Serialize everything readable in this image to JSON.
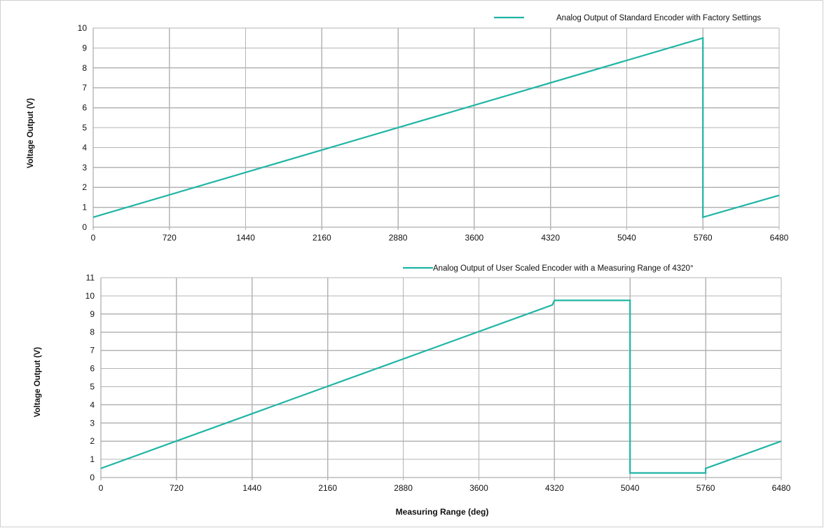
{
  "colors": {
    "series": "#1fb5a4",
    "grid": "#b4b4b4"
  },
  "chart_data": [
    {
      "type": "line",
      "title": "",
      "xlabel": "",
      "ylabel": "Voltage Output (V)",
      "xlim": [
        0,
        6480
      ],
      "ylim": [
        0,
        10
      ],
      "x_ticks": [
        "0",
        "720",
        "1440",
        "2160",
        "2880",
        "3600",
        "4320",
        "5040",
        "5760",
        "6480"
      ],
      "y_ticks": [
        "0",
        "1",
        "2",
        "3",
        "4",
        "5",
        "6",
        "7",
        "8",
        "9",
        "10"
      ],
      "grid": true,
      "legend_position": "top-right",
      "series": [
        {
          "name": "Analog Output of Standard Encoder with Factory Settings",
          "x": [
            0,
            5760,
            5760,
            6480
          ],
          "y": [
            0.5,
            9.5,
            0.5,
            1.6
          ]
        }
      ]
    },
    {
      "type": "line",
      "title": "",
      "xlabel": "Measuring Range (deg)",
      "ylabel": "Voltage Output (V)",
      "xlim": [
        0,
        6480
      ],
      "ylim": [
        0,
        11
      ],
      "x_ticks": [
        "0",
        "720",
        "1440",
        "2160",
        "2880",
        "3600",
        "4320",
        "5040",
        "5760",
        "6480"
      ],
      "y_ticks": [
        "0",
        "1",
        "2",
        "3",
        "4",
        "5",
        "6",
        "7",
        "8",
        "9",
        "10",
        "11"
      ],
      "grid": true,
      "legend_position": "top-right",
      "series": [
        {
          "name": "Analog Output of User Scaled Encoder with a Measuring Range of 4320°",
          "x": [
            0,
            4300,
            4320,
            5040,
            5040,
            5760,
            5760,
            6480
          ],
          "y": [
            0.5,
            9.5,
            9.75,
            9.75,
            0.25,
            0.25,
            0.5,
            2.0
          ]
        }
      ]
    }
  ]
}
